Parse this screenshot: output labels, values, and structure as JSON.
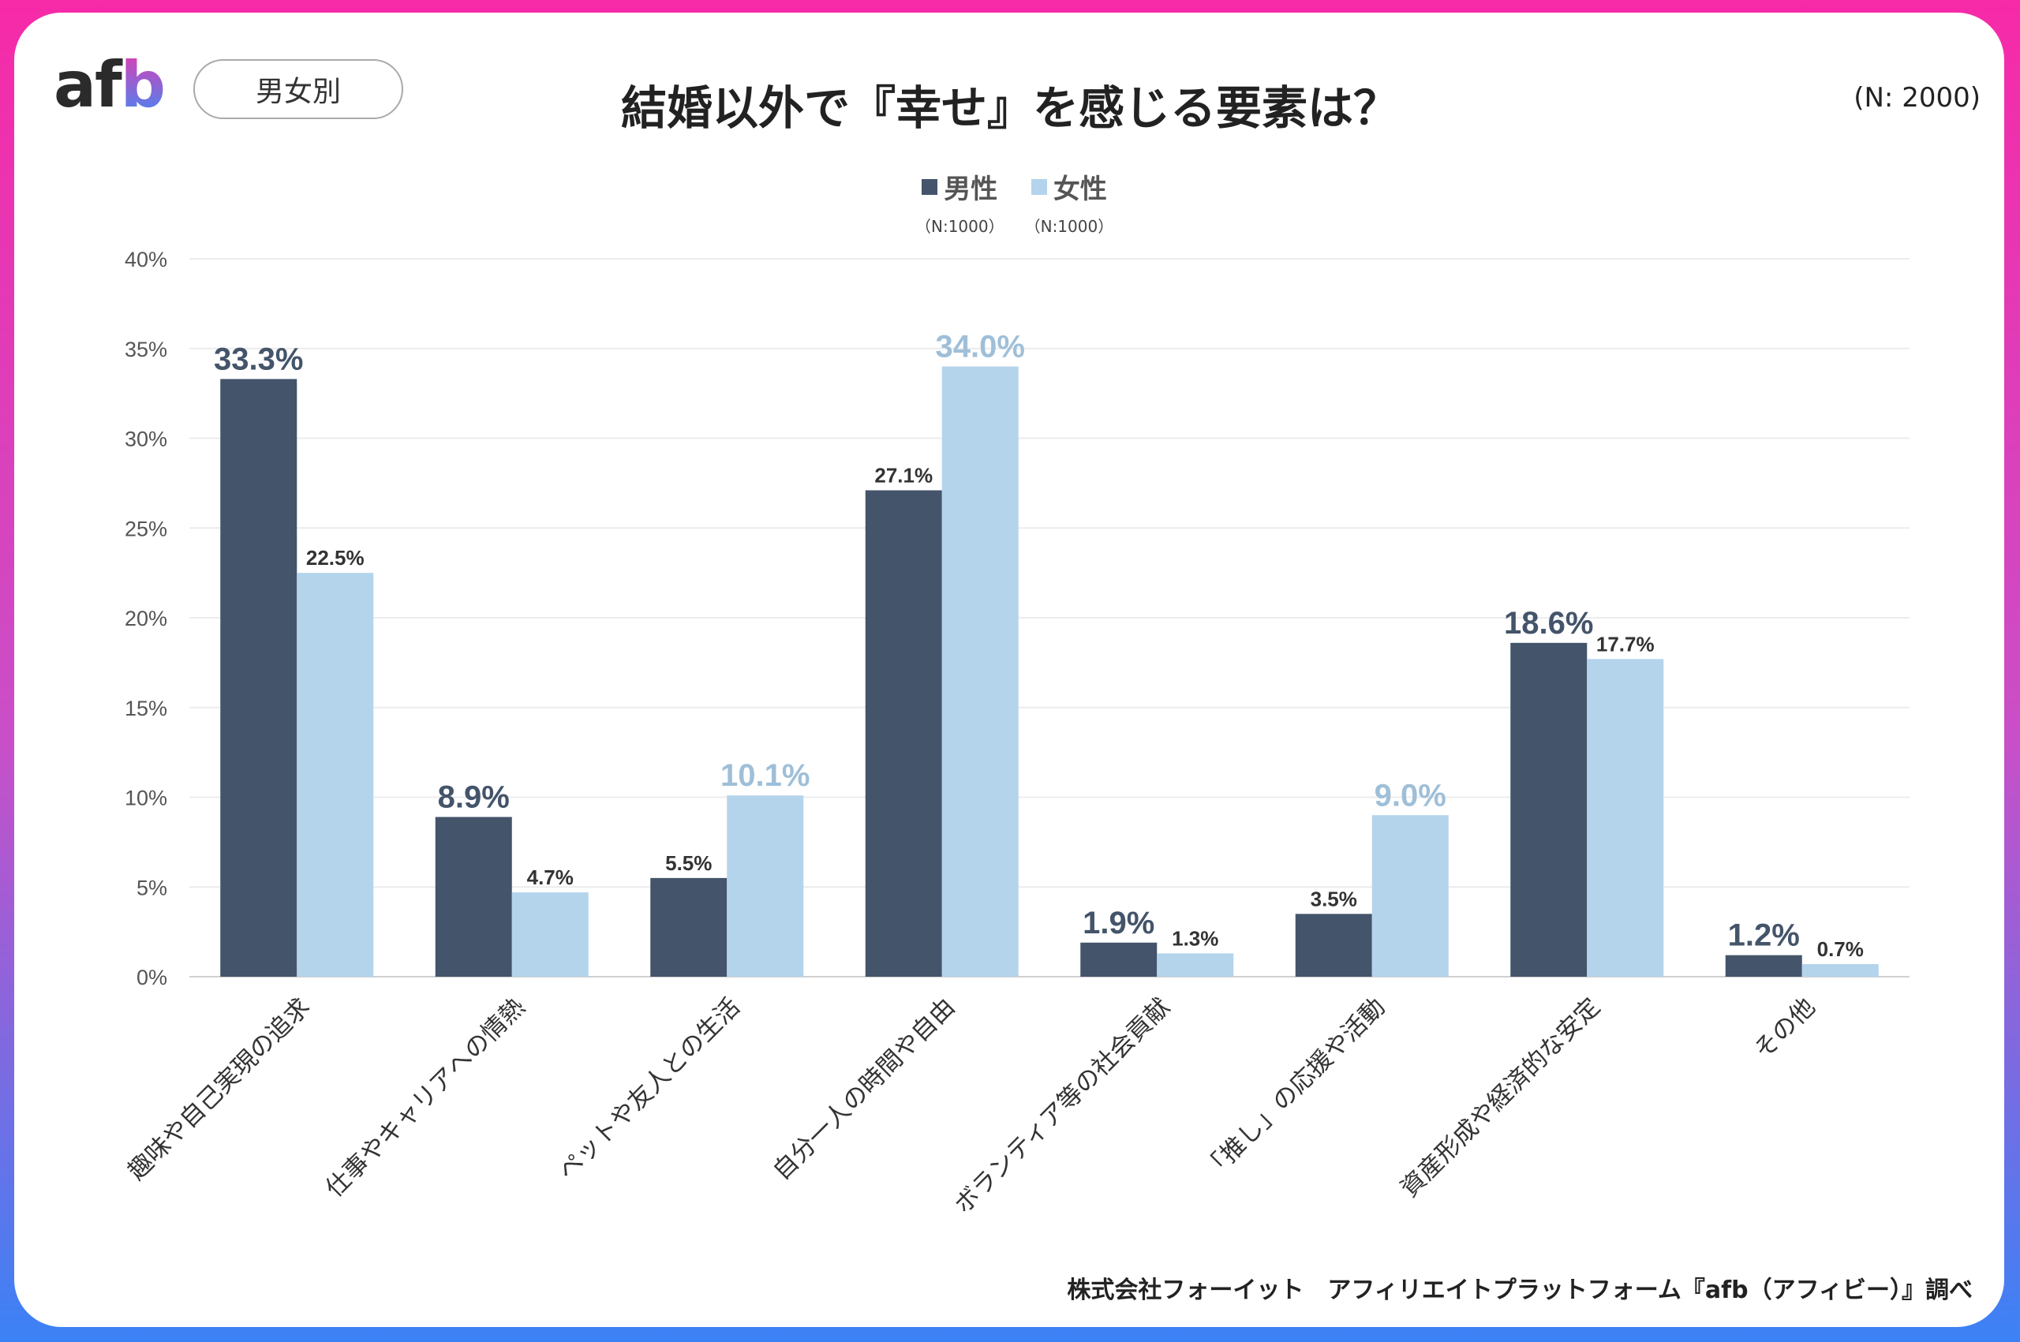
{
  "header": {
    "logo": "afb",
    "segment_label": "男女別",
    "title": "結婚以外で『幸せ』を感じる要素は？",
    "total_n": "(N: 2000)"
  },
  "footer": {
    "source": "株式会社フォーイット　アフィリエイトプラットフォーム『afb（アフィビー）』調べ"
  },
  "colors": {
    "male": "#44546a",
    "female": "#b4d4ec",
    "male_highlight_label": "#44546a",
    "female_highlight_label": "#9fbfd8"
  },
  "chart_data": {
    "type": "bar",
    "title": "結婚以外で『幸せ』を感じる要素は？",
    "categories": [
      "趣味や自己実現の追求",
      "仕事やキャリアへの情熱",
      "ペットや友人との生活",
      "自分一人の時間や自由",
      "ボランティア等の社会貢献",
      "「推し」の応援や活動",
      "資産形成や経済的な安定",
      "その他"
    ],
    "series": [
      {
        "name": "男性",
        "n_label": "（N:1000）",
        "values": [
          33.3,
          8.9,
          5.5,
          27.1,
          1.9,
          3.5,
          18.6,
          1.2
        ],
        "labels": [
          "33.3%",
          "8.9%",
          "5.5%",
          "27.1%",
          "1.9%",
          "3.5%",
          "18.6%",
          "1.2%"
        ]
      },
      {
        "name": "女性",
        "n_label": "（N:1000）",
        "values": [
          22.5,
          4.7,
          10.1,
          34.0,
          1.3,
          9.0,
          17.7,
          0.7
        ],
        "labels": [
          "22.5%",
          "4.7%",
          "10.1%",
          "34.0%",
          "1.3%",
          "9.0%",
          "17.7%",
          "0.7%"
        ]
      }
    ],
    "yticks": [
      "0%",
      "5%",
      "10%",
      "15%",
      "20%",
      "25%",
      "30%",
      "35%",
      "40%"
    ],
    "ylim": [
      0,
      40
    ],
    "grid": true,
    "legend": "top-center"
  }
}
